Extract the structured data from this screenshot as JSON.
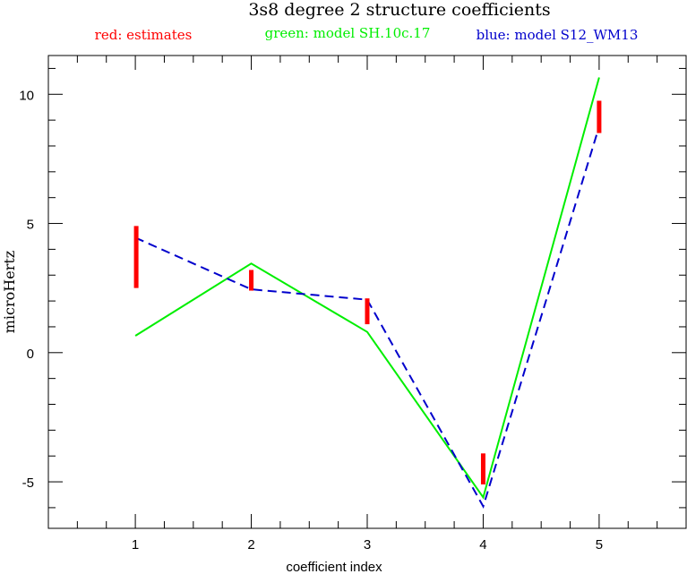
{
  "colors": {
    "estimates": "#ff0000",
    "model_green": "#00ee00",
    "model_blue": "#0000cc",
    "axis": "#000000"
  },
  "chart_data": {
    "type": "line",
    "title": "3s8 degree 2 structure coefficients",
    "legend": {
      "estimates": "red: estimates",
      "green": "green: model SH.10c.17",
      "blue": "blue: model S12_WM13"
    },
    "xlabel": "coefficient index",
    "ylabel": "microHertz",
    "xlim": [
      0.25,
      5.75
    ],
    "ylim": [
      -6.8,
      11.5
    ],
    "x_ticks": [
      "1",
      "2",
      "3",
      "4",
      "5"
    ],
    "y_ticks": [
      "-5",
      "0",
      "5",
      "10"
    ],
    "grid": false,
    "x": [
      1,
      2,
      3,
      4,
      5
    ],
    "series": [
      {
        "name": "green: model SH.10c.17",
        "style": "solid",
        "color": "#00ee00",
        "values": [
          0.65,
          3.45,
          0.8,
          -5.6,
          10.65
        ]
      },
      {
        "name": "blue: model S12_WM13",
        "style": "dashed",
        "color": "#0000cc",
        "values": [
          4.45,
          2.45,
          2.05,
          -5.95,
          8.75
        ]
      }
    ],
    "error_bars": {
      "name": "red: estimates",
      "color": "#ff0000",
      "low": [
        2.5,
        2.4,
        1.1,
        -5.1,
        8.5
      ],
      "high": [
        4.9,
        3.2,
        2.1,
        -3.9,
        9.75
      ]
    }
  }
}
